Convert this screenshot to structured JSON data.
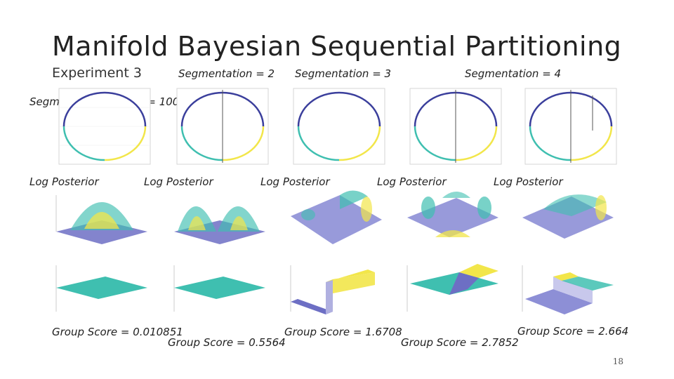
{
  "slide": {
    "title": "Manifold Bayesian Sequential Partitioning",
    "experiment": "Experiment 3",
    "page_number": "18"
  },
  "labels": {
    "seg1": "Segmentation = 1 , N = 1000",
    "seg2": "Segmentation = 2",
    "seg3": "Segmentation = 3",
    "seg4": "Segmentation = 4",
    "log_posterior": "Log Posterior",
    "scores": [
      "Group Score = 0.010851",
      "Group Score = 0.5564",
      "Group Score = 1.6708",
      "Group Score = 2.7852",
      "Group Score = 2.664"
    ]
  },
  "colors": {
    "blue": "#3b3f9c",
    "teal": "#3fbfb0",
    "yellow": "#f2e64a",
    "purple": "#6d6fc4",
    "grid": "#d9d9d9"
  }
}
